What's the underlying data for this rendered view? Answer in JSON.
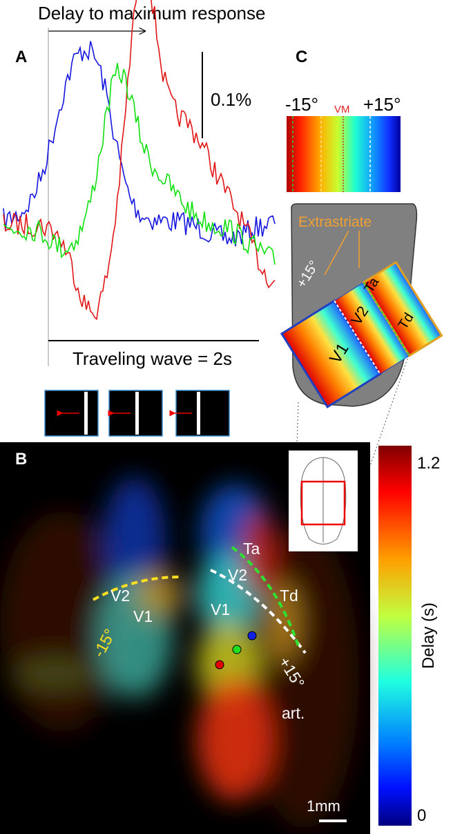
{
  "panel_a": {
    "label": "A",
    "annotation_top": "Delay to maximum response",
    "scale_bar": "0.1%",
    "annotation_bottom": "Traveling wave = 2s"
  },
  "panel_b": {
    "label": "B",
    "area_labels": {
      "ta": "Ta",
      "v2_right": "V2",
      "td": "Td",
      "v1_right": "V1",
      "v2_left": "V2",
      "v1_left": "V1",
      "minus15": "-15°",
      "plus15": "+15°",
      "art": "art."
    },
    "scale_bar": "1mm",
    "colorbar": {
      "title": "Delay (s)",
      "ticks": [
        0,
        1.2
      ]
    }
  },
  "panel_c": {
    "label": "C",
    "colorbar_labels": [
      "-15°",
      "VM",
      "+15°"
    ],
    "map_labels": {
      "extrastriate": "Extrastriate",
      "plus15": "+15°",
      "ta": "Ta",
      "v2": "V2",
      "td": "Td",
      "v1": "V1"
    }
  }
}
